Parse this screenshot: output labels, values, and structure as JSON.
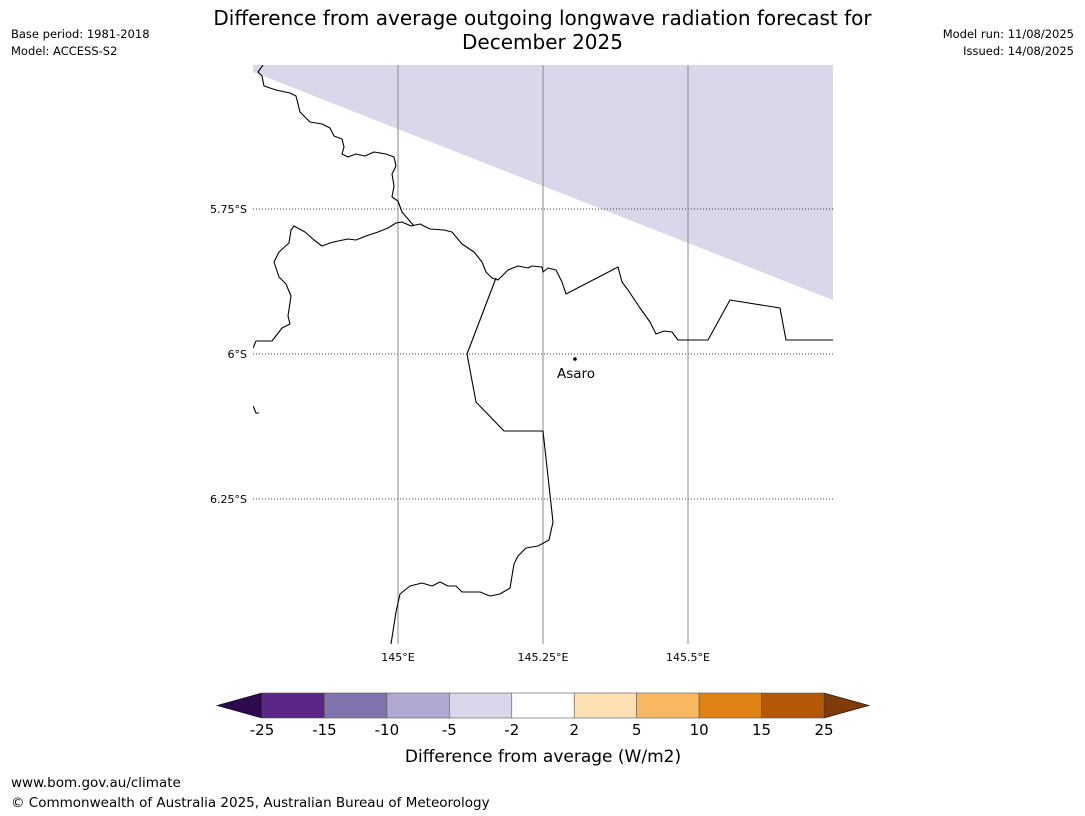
{
  "title_line1": "Difference from average outgoing longwave radiation forecast for",
  "title_line2": "December 2025",
  "meta_left": {
    "base_period": "Base period: 1981-2018",
    "model": "Model: ACCESS-S2"
  },
  "meta_right": {
    "model_run": "Model run: 11/08/2025",
    "issued": "Issued: 14/08/2025"
  },
  "map": {
    "lat_labels": [
      "5.75°S",
      "6°S",
      "6.25°S"
    ],
    "lon_labels": [
      "145°E",
      "145.25°E",
      "145.5°E"
    ],
    "place": {
      "name": "Asaro"
    }
  },
  "colorbar": {
    "ticks": [
      "-25",
      "-15",
      "-10",
      "-5",
      "-2",
      "2",
      "5",
      "10",
      "15",
      "25"
    ],
    "label": "Difference from average (W/m2)",
    "colors": {
      "below_min": "#2d0a4e",
      "bins": [
        "#5a2586",
        "#8173ad",
        "#b1a9d2",
        "#d8d8ea",
        "#ffffff",
        "#fde0b4",
        "#fbb862",
        "#e08214",
        "#b35806"
      ],
      "above_max": "#7f3b08"
    }
  },
  "forecast_anomaly_shading": {
    "category": "-5 to -2",
    "color": "#d8d8ea",
    "area": "north-east of map"
  },
  "footer": {
    "url": "www.bom.gov.au/climate",
    "copyright": "© Commonwealth of Australia 2025, Australian Bureau of Meteorology"
  }
}
